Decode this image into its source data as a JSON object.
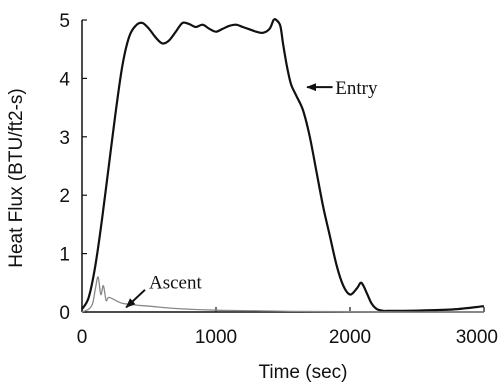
{
  "chart_data": {
    "type": "line",
    "xlabel": "Time (sec)",
    "ylabel": "Heat Flux (BTU/ft2-s)",
    "xlim": [
      0,
      3000
    ],
    "ylim": [
      0,
      5
    ],
    "xticks": [
      0,
      1000,
      2000,
      3000
    ],
    "yticks": [
      0,
      1,
      2,
      3,
      4,
      5
    ],
    "xtick_labels": [
      "0",
      "1000",
      "2000",
      "3000"
    ],
    "ytick_labels": [
      "0",
      "1",
      "2",
      "3",
      "4",
      "5"
    ],
    "grid": false,
    "legend": "none",
    "series": [
      {
        "name": "Entry",
        "color": "#111111",
        "x": [
          0,
          50,
          100,
          150,
          200,
          250,
          300,
          350,
          400,
          450,
          500,
          550,
          600,
          650,
          700,
          750,
          800,
          850,
          900,
          950,
          1000,
          1050,
          1100,
          1150,
          1200,
          1250,
          1300,
          1350,
          1400,
          1430,
          1450,
          1480,
          1500,
          1530,
          1560,
          1600,
          1650,
          1700,
          1750,
          1800,
          1850,
          1900,
          1950,
          2000,
          2050,
          2080,
          2100,
          2130,
          2160,
          2200,
          2250,
          2300,
          2400,
          2600,
          2800,
          3000
        ],
        "y": [
          0.05,
          0.25,
          0.8,
          1.6,
          2.5,
          3.4,
          4.2,
          4.7,
          4.9,
          4.95,
          4.85,
          4.7,
          4.6,
          4.65,
          4.8,
          4.95,
          4.93,
          4.88,
          4.92,
          4.85,
          4.8,
          4.85,
          4.9,
          4.92,
          4.88,
          4.84,
          4.8,
          4.78,
          4.85,
          5.0,
          5.0,
          4.9,
          4.6,
          4.2,
          3.9,
          3.7,
          3.45,
          3.0,
          2.4,
          1.8,
          1.3,
          0.8,
          0.45,
          0.3,
          0.4,
          0.5,
          0.45,
          0.3,
          0.15,
          0.05,
          0.02,
          0.02,
          0.02,
          0.03,
          0.05,
          0.1
        ]
      },
      {
        "name": "Ascent",
        "color": "#888888",
        "x": [
          0,
          50,
          80,
          100,
          120,
          140,
          160,
          180,
          200,
          250,
          300,
          400,
          500,
          700,
          1000,
          1300,
          1600,
          2000,
          2500,
          3000
        ],
        "y": [
          0.0,
          0.05,
          0.15,
          0.4,
          0.6,
          0.3,
          0.45,
          0.2,
          0.25,
          0.2,
          0.15,
          0.12,
          0.1,
          0.06,
          0.03,
          0.02,
          0.01,
          0.005,
          0.0,
          0.0
        ]
      }
    ],
    "annotations": [
      {
        "label": "Entry",
        "text_x": 1890,
        "text_y": 3.85,
        "arrow_to_x": 1680,
        "arrow_to_y": 3.85,
        "arrow_from_x": 1870,
        "arrow_from_y": 3.85
      },
      {
        "label": "Ascent",
        "text_x": 500,
        "text_y": 0.52,
        "arrow_to_x": 330,
        "arrow_to_y": 0.08,
        "arrow_from_x": 470,
        "arrow_from_y": 0.38
      }
    ]
  }
}
